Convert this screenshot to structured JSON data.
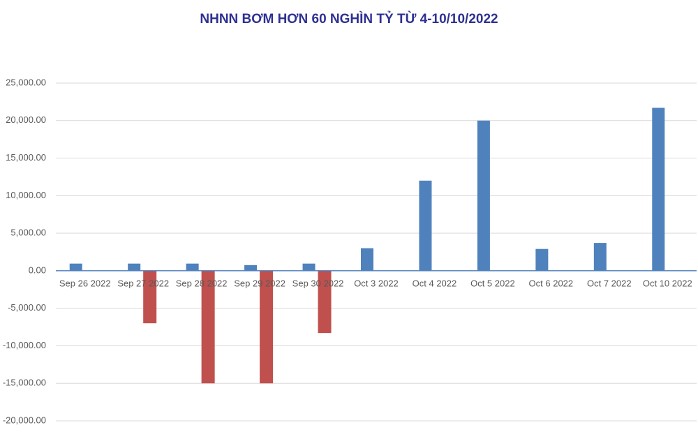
{
  "chart_data": {
    "type": "bar",
    "title": "NHNN BƠM HƠN 60 NGHÌN TỶ TỪ 4-10/10/2022",
    "categories": [
      "Sep 26 2022",
      "Sep 27 2022",
      "Sep 28 2022",
      "Sep 29 2022",
      "Sep 30 2022",
      "Oct 3 2022",
      "Oct 4 2022",
      "Oct 5 2022",
      "Oct 6 2022",
      "Oct 7 2022",
      "Oct 10 2022"
    ],
    "series": [
      {
        "color": "#4f81bd",
        "values": [
          950,
          950,
          950,
          750,
          950,
          3000,
          12000,
          20000,
          2900,
          3700,
          21700
        ]
      },
      {
        "color": "#c0504d",
        "values": [
          null,
          -7000,
          -15000,
          -15000,
          -8300,
          null,
          null,
          null,
          null,
          null,
          null
        ]
      }
    ],
    "ylim": [
      -20000,
      25000
    ],
    "yticks": [
      {
        "value": -20000,
        "label": "-20,000.00"
      },
      {
        "value": -15000,
        "label": "-15,000.00"
      },
      {
        "value": -10000,
        "label": "-10,000.00"
      },
      {
        "value": -5000,
        "label": "-5,000.00"
      },
      {
        "value": 0,
        "label": "0.00"
      },
      {
        "value": 5000,
        "label": "5,000.00"
      },
      {
        "value": 10000,
        "label": "10,000.00"
      },
      {
        "value": 15000,
        "label": "15,000.00"
      },
      {
        "value": 20000,
        "label": "20,000.00"
      },
      {
        "value": 25000,
        "label": "25,000.00"
      }
    ],
    "grid": true
  }
}
